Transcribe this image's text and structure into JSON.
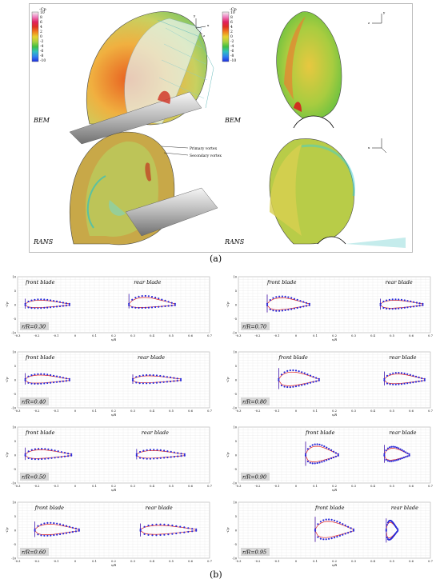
{
  "figure_a": {
    "legend_title": "-Cp",
    "legend_ticks": [
      "10",
      "8",
      "6",
      "4",
      "2",
      "0",
      "-2",
      "-4",
      "-6",
      "-8",
      "-10"
    ],
    "panel_labels": [
      "BEM",
      "BEM",
      "RANS",
      "RANS"
    ],
    "vortex_labels": [
      "Primary vortex",
      "Secondary vortex"
    ],
    "axis_letters": [
      "y",
      "x",
      "z",
      "y",
      "z",
      "x"
    ],
    "caption": "(a)"
  },
  "figure_b": {
    "caption": "(b)",
    "front_label": "front blade",
    "rear_label": "rear blade",
    "ylabel": "-Cp",
    "xlabel": "x/R",
    "x_ticks": [
      "-0.3",
      "-0.2",
      "-0.1",
      "0",
      "0.1",
      "0.2",
      "0.3",
      "0.4",
      "0.5",
      "0.6",
      "0.7"
    ],
    "y_ticks": [
      "10",
      "5",
      "0",
      "-5",
      "-10"
    ],
    "radii": [
      "r/R=0.30",
      "r/R=0.40",
      "r/R=0.50",
      "r/R=0.60",
      "r/R=0.70",
      "r/R=0.80",
      "r/R=0.90",
      "r/R=0.95"
    ],
    "colors": {
      "rans": "#2a2ad8",
      "bem": "#e02020"
    }
  },
  "chart_data": {
    "type": "line",
    "xlabel": "x/R",
    "ylabel": "-Cp",
    "xlim": [
      -0.3,
      0.7
    ],
    "ylim": [
      -10,
      10
    ],
    "grid": true,
    "panels": [
      {
        "label": "r/R=0.30",
        "front": {
          "x0": -0.26,
          "x1": -0.03,
          "top": 1.8,
          "bot": -1.3
        },
        "rear": {
          "x0": 0.28,
          "x1": 0.52,
          "top": 3.2,
          "bot": -1.2
        }
      },
      {
        "label": "r/R=0.40",
        "front": {
          "x0": -0.26,
          "x1": -0.03,
          "top": 2.0,
          "bot": -1.5
        },
        "rear": {
          "x0": 0.3,
          "x1": 0.55,
          "top": 1.6,
          "bot": -1.3
        }
      },
      {
        "label": "r/R=0.50",
        "front": {
          "x0": -0.26,
          "x1": -0.02,
          "top": 2.2,
          "bot": -1.6
        },
        "rear": {
          "x0": 0.32,
          "x1": 0.57,
          "top": 1.8,
          "bot": -1.4
        }
      },
      {
        "label": "r/R=0.60",
        "front": {
          "x0": -0.21,
          "x1": 0.02,
          "top": 2.6,
          "bot": -2.2
        },
        "rear": {
          "x0": 0.34,
          "x1": 0.63,
          "top": 2.0,
          "bot": -2.0
        }
      },
      {
        "label": "r/R=0.70",
        "front": {
          "x0": -0.15,
          "x1": 0.07,
          "top": 3.0,
          "bot": -2.5
        },
        "rear": {
          "x0": 0.44,
          "x1": 0.66,
          "top": 1.8,
          "bot": -1.6
        }
      },
      {
        "label": "r/R=0.80",
        "front": {
          "x0": -0.09,
          "x1": 0.12,
          "top": 3.5,
          "bot": -3.0
        },
        "rear": {
          "x0": 0.46,
          "x1": 0.67,
          "top": 2.5,
          "bot": -1.8
        }
      },
      {
        "label": "r/R=0.90",
        "front": {
          "x0": 0.05,
          "x1": 0.22,
          "top": 4.0,
          "bot": -3.5
        },
        "rear": {
          "x0": 0.46,
          "x1": 0.59,
          "top": 3.0,
          "bot": -2.5
        }
      },
      {
        "label": "r/R=0.95",
        "front": {
          "x0": 0.1,
          "x1": 0.3,
          "top": 4.0,
          "bot": -3.8
        },
        "rear": {
          "x0": 0.47,
          "x1": 0.53,
          "top": 3.5,
          "bot": -4.0
        }
      }
    ]
  }
}
